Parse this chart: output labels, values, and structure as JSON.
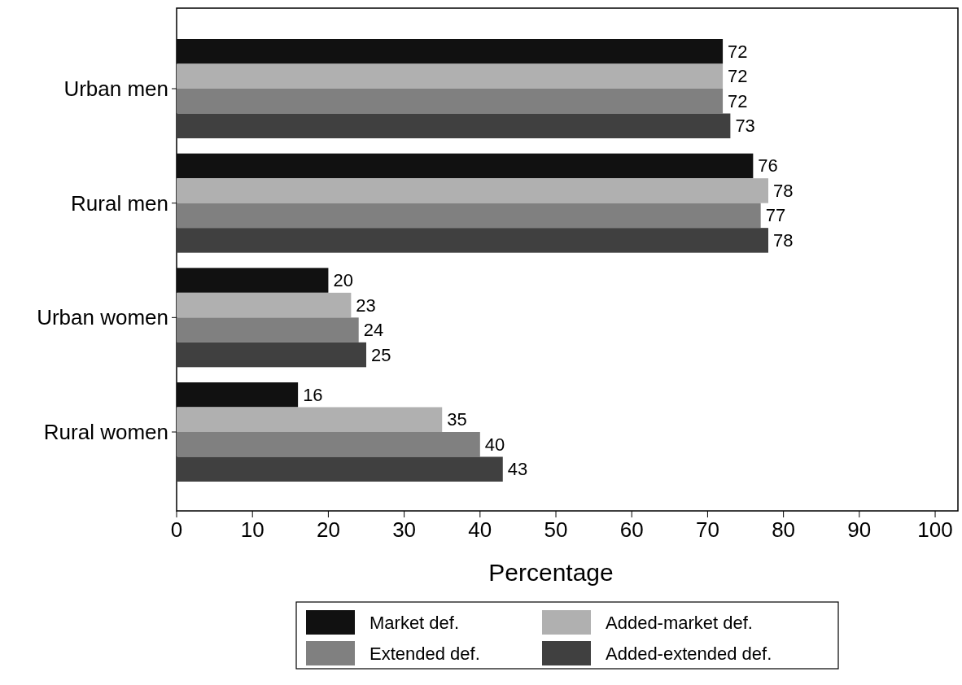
{
  "chart_data": {
    "type": "bar",
    "orientation": "horizontal",
    "xlabel": "Percentage",
    "categories": [
      "Urban men",
      "Rural men",
      "Urban women",
      "Rural women"
    ],
    "series": [
      {
        "name": "Market def.",
        "color": "#111111",
        "values": [
          72,
          76,
          20,
          16
        ]
      },
      {
        "name": "Added-market def.",
        "color": "#b0b0b0",
        "values": [
          72,
          78,
          23,
          35
        ]
      },
      {
        "name": "Extended def.",
        "color": "#808080",
        "values": [
          72,
          77,
          24,
          40
        ]
      },
      {
        "name": "Added-extended def.",
        "color": "#404040",
        "values": [
          73,
          78,
          25,
          43
        ]
      }
    ],
    "xlim": [
      0,
      103
    ],
    "xticks": [
      0,
      10,
      20,
      30,
      40,
      50,
      60,
      70,
      80,
      90,
      100
    ],
    "data_labels": true,
    "legend": "bottom",
    "grid": false
  }
}
